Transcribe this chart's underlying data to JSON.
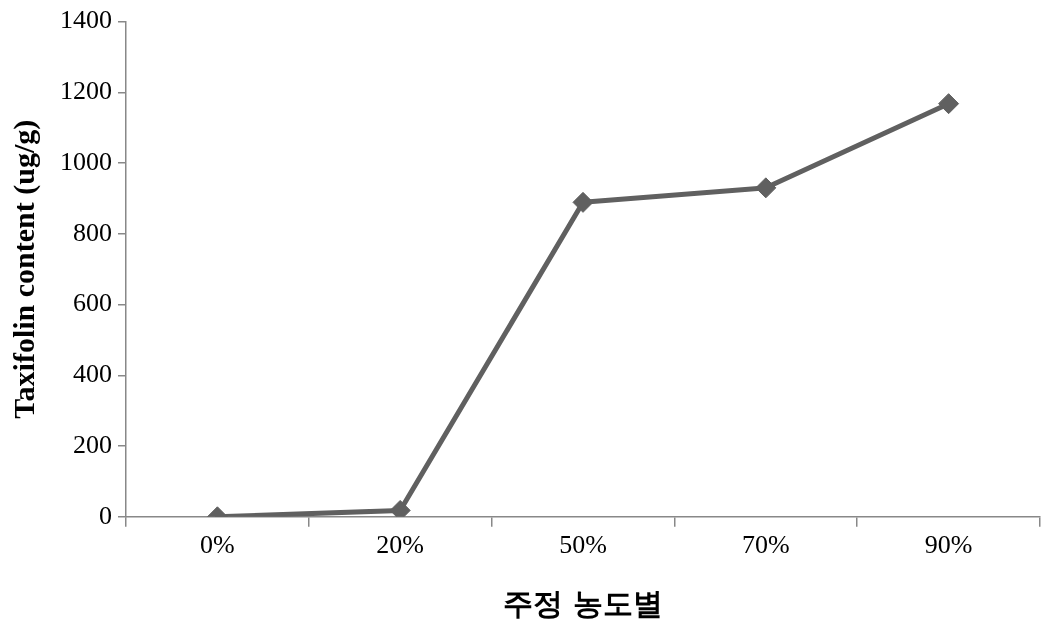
{
  "chart_data": {
    "type": "line",
    "xlabel": "주정 농도별",
    "ylabel": "Taxifolin content (ug/g)",
    "categories": [
      "0%",
      "20%",
      "50%",
      "70%",
      "90%"
    ],
    "series": [
      {
        "color": "#606060",
        "values": [
          0,
          18,
          889,
          930,
          1168
        ]
      }
    ],
    "ylim": [
      0,
      1400
    ],
    "yticks": [
      0,
      200,
      400,
      600,
      800,
      1000,
      1200,
      1400
    ],
    "grid": false,
    "legend": false,
    "marker": "diamond",
    "line_style": "solid"
  }
}
